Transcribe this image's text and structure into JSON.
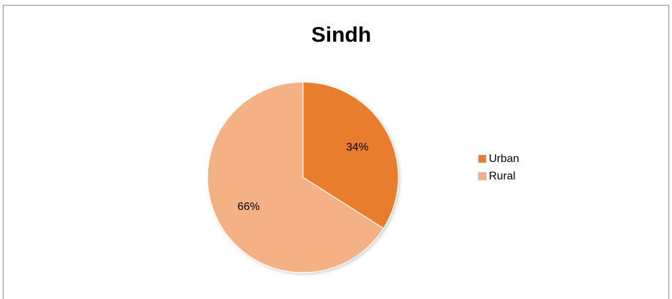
{
  "chart_data": {
    "type": "pie",
    "title": "Sindh",
    "categories": [
      "Urban",
      "Rural"
    ],
    "values": [
      34,
      66
    ],
    "value_labels": [
      "34%",
      "66%"
    ],
    "colors": [
      "#e97d2e",
      "#f4b183"
    ],
    "legend": "right"
  }
}
